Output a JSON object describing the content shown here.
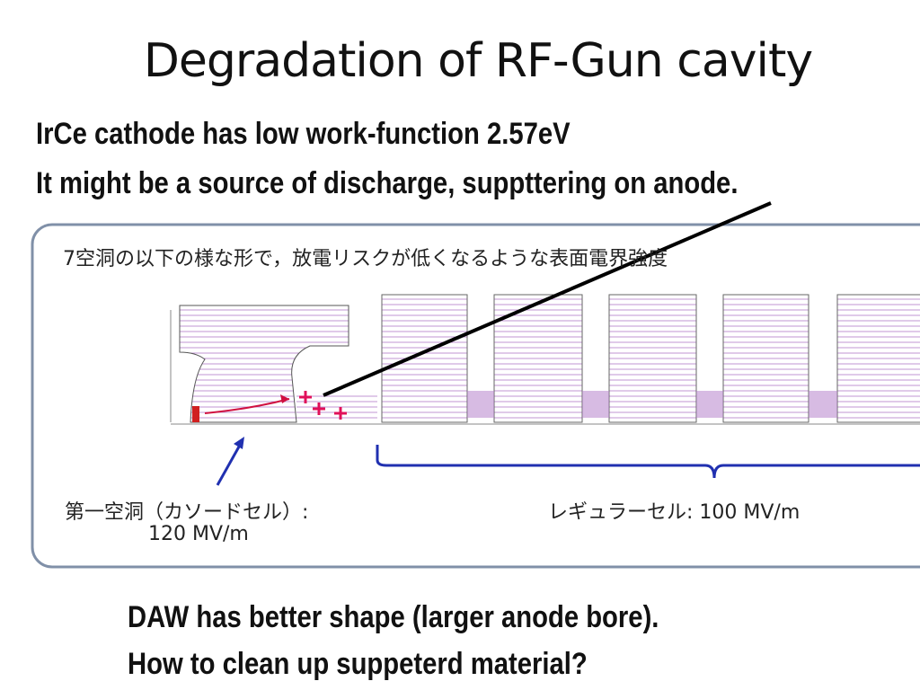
{
  "slide": {
    "title": "Degradation of RF-Gun cavity",
    "intro": [
      "IrCe cathode has low work-function 2.57eV",
      "It might be a source of discharge, suppttering on anode."
    ],
    "figure": {
      "caption": "7空洞の以下の様な形で，放電リスクが低くなるような表面電界強度",
      "cathode_cell_label": "第一空洞（カソードセル）:",
      "cathode_cell_field": "120 MV/m",
      "regular_cell_label": "レギュラーセル: 100 MV/m"
    },
    "conclusion": [
      "DAW has better shape (larger anode bore).",
      "How to clean up suppeterd material?"
    ]
  }
}
